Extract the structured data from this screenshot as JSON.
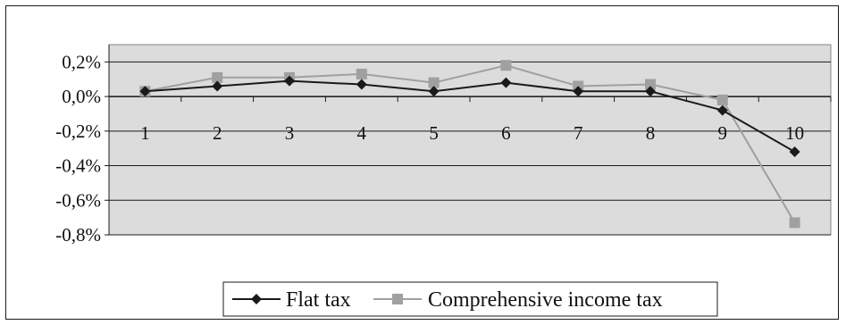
{
  "chart_data": {
    "type": "line",
    "title": "",
    "xlabel": "",
    "ylabel": "",
    "categories": [
      "1",
      "2",
      "3",
      "4",
      "5",
      "6",
      "7",
      "8",
      "9",
      "10"
    ],
    "y_ticks": [
      "0,2%",
      "0,0%",
      "-0,2%",
      "-0,4%",
      "-0,6%",
      "-0,8%"
    ],
    "ylim": [
      -0.8,
      0.3
    ],
    "y_unit": "%",
    "grid": true,
    "plot_background": "#dcdcdc",
    "legend_position": "bottom",
    "series": [
      {
        "name": "Flat tax",
        "color": "#1a1a1a",
        "marker": "diamond",
        "values": [
          0.03,
          0.06,
          0.09,
          0.07,
          0.03,
          0.08,
          0.03,
          0.03,
          -0.08,
          -0.32
        ]
      },
      {
        "name": "Comprehensive income tax",
        "color": "#a0a0a0",
        "marker": "square",
        "values": [
          0.03,
          0.11,
          0.11,
          0.13,
          0.08,
          0.18,
          0.06,
          0.07,
          -0.02,
          -0.73
        ]
      }
    ]
  }
}
